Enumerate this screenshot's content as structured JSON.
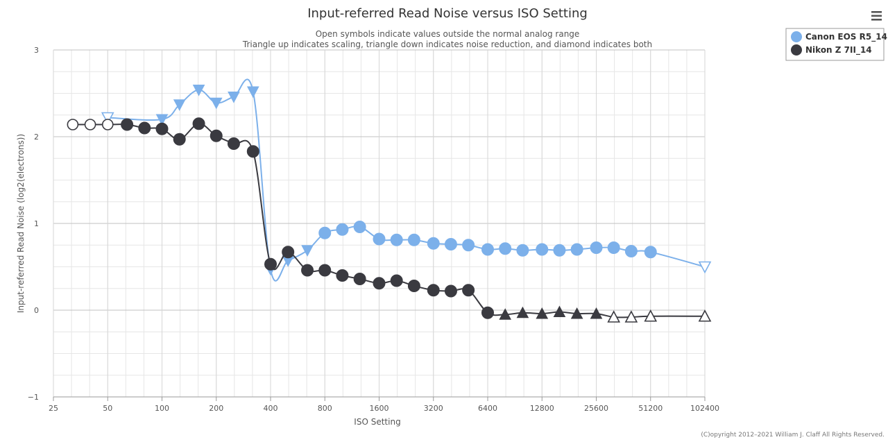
{
  "chart_data": {
    "type": "line",
    "title": "Input-referred Read Noise versus ISO Setting",
    "subtitle_lines": [
      "Open symbols indicate values outside the normal analog range",
      "Triangle up indicates scaling, triangle down indicates noise reduction, and diamond indicates both"
    ],
    "xlabel": "ISO Setting",
    "ylabel": "Input-referred Read Noise (log2(electrons))",
    "x_scale": "log2",
    "xlim": [
      25,
      102400
    ],
    "ylim": [
      -1,
      3
    ],
    "x_ticks": [
      25,
      50,
      100,
      200,
      400,
      800,
      1600,
      3200,
      6400,
      12800,
      25600,
      51200,
      102400
    ],
    "x_tick_labels": [
      "25",
      "50",
      "100",
      "200",
      "400",
      "800",
      "1600",
      "3200",
      "6400",
      "12800",
      "25600",
      "51200",
      "102400"
    ],
    "y_ticks": [
      -1,
      0,
      1,
      2,
      3
    ],
    "y_tick_labels": [
      "−1",
      "0",
      "1",
      "2",
      "3"
    ],
    "legend_position": "top-right",
    "series": [
      {
        "name": "Canon EOS R5_14",
        "color": "#7cb0ea",
        "points": [
          {
            "x": 50,
            "y": 2.22,
            "marker": "triangle-down",
            "filled": false
          },
          {
            "x": 100,
            "y": 2.2,
            "marker": "triangle-down",
            "filled": true
          },
          {
            "x": 125,
            "y": 2.37,
            "marker": "triangle-down",
            "filled": true
          },
          {
            "x": 160,
            "y": 2.54,
            "marker": "triangle-down",
            "filled": true
          },
          {
            "x": 200,
            "y": 2.39,
            "marker": "triangle-down",
            "filled": true
          },
          {
            "x": 250,
            "y": 2.46,
            "marker": "triangle-down",
            "filled": true
          },
          {
            "x": 320,
            "y": 2.52,
            "marker": "triangle-down",
            "filled": true
          },
          {
            "x": 400,
            "y": 0.47,
            "marker": "triangle-down",
            "filled": true
          },
          {
            "x": 500,
            "y": 0.57,
            "marker": "triangle-down",
            "filled": true
          },
          {
            "x": 640,
            "y": 0.69,
            "marker": "triangle-down",
            "filled": true
          },
          {
            "x": 800,
            "y": 0.89,
            "marker": "circle",
            "filled": true
          },
          {
            "x": 1000,
            "y": 0.93,
            "marker": "circle",
            "filled": true
          },
          {
            "x": 1250,
            "y": 0.96,
            "marker": "circle",
            "filled": true
          },
          {
            "x": 1600,
            "y": 0.82,
            "marker": "circle",
            "filled": true
          },
          {
            "x": 2000,
            "y": 0.81,
            "marker": "circle",
            "filled": true
          },
          {
            "x": 2500,
            "y": 0.81,
            "marker": "circle",
            "filled": true
          },
          {
            "x": 3200,
            "y": 0.77,
            "marker": "circle",
            "filled": true
          },
          {
            "x": 4000,
            "y": 0.76,
            "marker": "circle",
            "filled": true
          },
          {
            "x": 5000,
            "y": 0.75,
            "marker": "circle",
            "filled": true
          },
          {
            "x": 6400,
            "y": 0.7,
            "marker": "circle",
            "filled": true
          },
          {
            "x": 8000,
            "y": 0.71,
            "marker": "circle",
            "filled": true
          },
          {
            "x": 10000,
            "y": 0.69,
            "marker": "circle",
            "filled": true
          },
          {
            "x": 12800,
            "y": 0.7,
            "marker": "circle",
            "filled": true
          },
          {
            "x": 16000,
            "y": 0.69,
            "marker": "circle",
            "filled": true
          },
          {
            "x": 20000,
            "y": 0.7,
            "marker": "circle",
            "filled": true
          },
          {
            "x": 25600,
            "y": 0.72,
            "marker": "circle",
            "filled": true
          },
          {
            "x": 32000,
            "y": 0.72,
            "marker": "circle",
            "filled": true
          },
          {
            "x": 40000,
            "y": 0.68,
            "marker": "circle",
            "filled": true
          },
          {
            "x": 51200,
            "y": 0.67,
            "marker": "circle",
            "filled": true
          },
          {
            "x": 102400,
            "y": 0.5,
            "marker": "triangle-down",
            "filled": false
          }
        ]
      },
      {
        "name": "Nikon Z 7II_14",
        "color": "#3a3a40",
        "points": [
          {
            "x": 32,
            "y": 2.14,
            "marker": "circle",
            "filled": false
          },
          {
            "x": 40,
            "y": 2.14,
            "marker": "circle",
            "filled": false
          },
          {
            "x": 50,
            "y": 2.14,
            "marker": "circle",
            "filled": false
          },
          {
            "x": 64,
            "y": 2.14,
            "marker": "circle",
            "filled": true
          },
          {
            "x": 80,
            "y": 2.1,
            "marker": "circle",
            "filled": true
          },
          {
            "x": 100,
            "y": 2.09,
            "marker": "circle",
            "filled": true
          },
          {
            "x": 125,
            "y": 1.97,
            "marker": "circle",
            "filled": true
          },
          {
            "x": 160,
            "y": 2.15,
            "marker": "circle",
            "filled": true
          },
          {
            "x": 200,
            "y": 2.01,
            "marker": "circle",
            "filled": true
          },
          {
            "x": 250,
            "y": 1.92,
            "marker": "circle",
            "filled": true
          },
          {
            "x": 320,
            "y": 1.83,
            "marker": "circle",
            "filled": true
          },
          {
            "x": 400,
            "y": 0.53,
            "marker": "circle",
            "filled": true
          },
          {
            "x": 500,
            "y": 0.67,
            "marker": "circle",
            "filled": true
          },
          {
            "x": 640,
            "y": 0.46,
            "marker": "circle",
            "filled": true
          },
          {
            "x": 800,
            "y": 0.46,
            "marker": "circle",
            "filled": true
          },
          {
            "x": 1000,
            "y": 0.4,
            "marker": "circle",
            "filled": true
          },
          {
            "x": 1250,
            "y": 0.36,
            "marker": "circle",
            "filled": true
          },
          {
            "x": 1600,
            "y": 0.31,
            "marker": "circle",
            "filled": true
          },
          {
            "x": 2000,
            "y": 0.34,
            "marker": "circle",
            "filled": true
          },
          {
            "x": 2500,
            "y": 0.28,
            "marker": "circle",
            "filled": true
          },
          {
            "x": 3200,
            "y": 0.23,
            "marker": "circle",
            "filled": true
          },
          {
            "x": 4000,
            "y": 0.22,
            "marker": "circle",
            "filled": true
          },
          {
            "x": 5000,
            "y": 0.23,
            "marker": "circle",
            "filled": true
          },
          {
            "x": 6400,
            "y": -0.03,
            "marker": "circle",
            "filled": true
          },
          {
            "x": 8000,
            "y": -0.05,
            "marker": "triangle-up",
            "filled": true
          },
          {
            "x": 10000,
            "y": -0.03,
            "marker": "triangle-up",
            "filled": true
          },
          {
            "x": 12800,
            "y": -0.04,
            "marker": "triangle-up",
            "filled": true
          },
          {
            "x": 16000,
            "y": -0.02,
            "marker": "triangle-up",
            "filled": true
          },
          {
            "x": 20000,
            "y": -0.04,
            "marker": "triangle-up",
            "filled": true
          },
          {
            "x": 25600,
            "y": -0.04,
            "marker": "triangle-up",
            "filled": true
          },
          {
            "x": 32000,
            "y": -0.08,
            "marker": "triangle-up",
            "filled": false
          },
          {
            "x": 40000,
            "y": -0.08,
            "marker": "triangle-up",
            "filled": false
          },
          {
            "x": 51200,
            "y": -0.07,
            "marker": "triangle-up",
            "filled": false
          },
          {
            "x": 102400,
            "y": -0.07,
            "marker": "triangle-up",
            "filled": false
          }
        ]
      }
    ],
    "credits": "(C)opyright 2012–2021 William J. Claff All Rights Reserved."
  },
  "ui": {
    "menu_icon": "hamburger-menu-icon",
    "grid_color": "#d6d6d6",
    "axis_color": "#c0c0c0"
  }
}
